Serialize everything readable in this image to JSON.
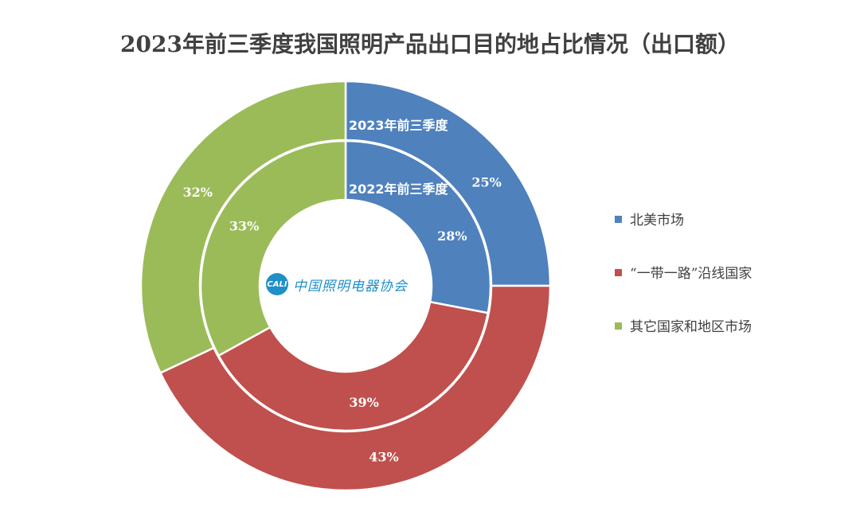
{
  "chart_data": {
    "type": "donut",
    "title": "2023年前三季度我国照明产品出口目的地占比情况（出口额）",
    "categories": [
      "北美市场",
      "“一带一路”沿线国家",
      "其它国家和地区市场"
    ],
    "colors": [
      "#4f81bd",
      "#c0504d",
      "#9bbb59"
    ],
    "series": [
      {
        "name": "2023年前三季度",
        "values": [
          25,
          43,
          32
        ]
      },
      {
        "name": "2022年前三季度",
        "values": [
          28,
          39,
          33
        ]
      }
    ],
    "legend_position": "right",
    "unit": "%"
  },
  "logo": {
    "mark": "CALI",
    "text": "中国照明电器协会"
  }
}
